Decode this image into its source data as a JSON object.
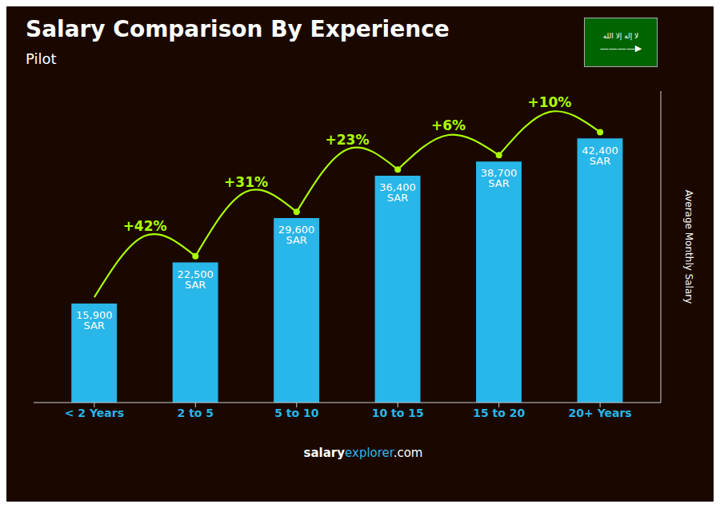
{
  "chart_data": {
    "type": "bar",
    "title": "Salary Comparison By Experience",
    "subtitle": "Pilot",
    "categories": [
      "< 2 Years",
      "2 to 5",
      "5 to 10",
      "10 to 15",
      "15 to 20",
      "20+ Years"
    ],
    "values": [
      15900,
      22500,
      29600,
      36400,
      38700,
      42400
    ],
    "value_labels": [
      "15,900 SAR",
      "22,500 SAR",
      "29,600 SAR",
      "36,400 SAR",
      "38,700 SAR",
      "42,400 SAR"
    ],
    "data_labels": true,
    "color": "#29b6e8",
    "y_label": "Average Monthly Salary",
    "ylim": [
      0,
      50000
    ],
    "tick_labels": "x",
    "grid": false,
    "annotations": [
      {
        "text": "+42%",
        "color": "#aaff00"
      },
      {
        "text": "+31%",
        "color": "#aaff00"
      },
      {
        "text": "+23%",
        "color": "#aaff00"
      },
      {
        "text": "+6%",
        "color": "#aaff00"
      },
      {
        "text": "+10%",
        "color": "#aaff00"
      }
    ],
    "footer": [
      "salary",
      "explorer",
      ".com"
    ],
    "badge_text": [
      "لا إله إلا الله",
      "————▶"
    ]
  }
}
